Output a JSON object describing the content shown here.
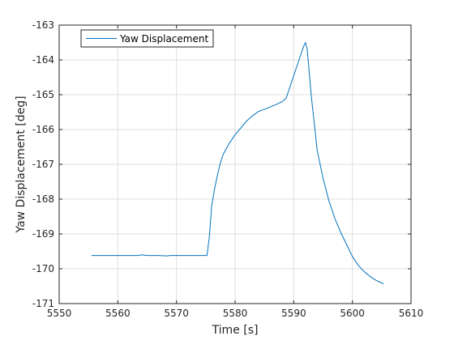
{
  "colors": {
    "series": "#0072bd",
    "grid": "#dfdfdf",
    "axis": "#262626",
    "background": "#ffffff"
  },
  "chart_data": {
    "type": "line",
    "title": "",
    "xlabel": "Time [s]",
    "ylabel": "Yaw Displacement [deg]",
    "xlim": [
      5550,
      5610
    ],
    "ylim": [
      -171,
      -163
    ],
    "xticks": [
      5550,
      5560,
      5570,
      5580,
      5590,
      5600,
      5610
    ],
    "yticks": [
      -171,
      -170,
      -169,
      -168,
      -167,
      -166,
      -165,
      -164,
      -163
    ],
    "grid": true,
    "legend_position": "top-left",
    "series": [
      {
        "name": "Yaw Displacement",
        "color": "#0072bd",
        "x": [
          5555.5,
          5558,
          5560,
          5562,
          5563.5,
          5564,
          5565,
          5567,
          5568.3,
          5569,
          5571,
          5573,
          5575.2,
          5575.6,
          5576,
          5576.5,
          5577,
          5577.5,
          5578,
          5578.5,
          5579,
          5580,
          5581,
          5582,
          5583,
          5584,
          5585,
          5586,
          5587,
          5588,
          5588.7,
          5589.5,
          5590.5,
          5591.3,
          5591.7,
          5592.0,
          5592.3,
          5593,
          5594,
          5595,
          5596,
          5597,
          5598,
          5599,
          5600,
          5601,
          5602,
          5603,
          5604,
          5605.3
        ],
        "y": [
          -169.62,
          -169.62,
          -169.62,
          -169.62,
          -169.62,
          -169.6,
          -169.62,
          -169.62,
          -169.63,
          -169.62,
          -169.62,
          -169.62,
          -169.62,
          -169.1,
          -168.2,
          -167.7,
          -167.3,
          -166.95,
          -166.7,
          -166.55,
          -166.4,
          -166.15,
          -165.95,
          -165.75,
          -165.6,
          -165.48,
          -165.42,
          -165.35,
          -165.28,
          -165.2,
          -165.1,
          -164.7,
          -164.2,
          -163.8,
          -163.6,
          -163.5,
          -163.7,
          -165.05,
          -166.6,
          -167.4,
          -168.05,
          -168.55,
          -168.95,
          -169.3,
          -169.65,
          -169.9,
          -170.08,
          -170.22,
          -170.33,
          -170.43
        ]
      }
    ]
  }
}
